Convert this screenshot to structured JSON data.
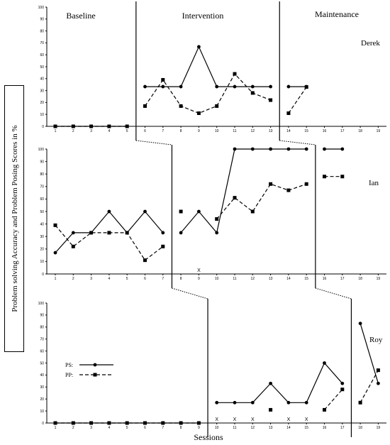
{
  "chart_data": {
    "type": "line",
    "ylabel": "Problem solving Accuracy and Problem Posing Scores in %",
    "xlabel": "Sessions",
    "phases": [
      "Baseline",
      "Intervention",
      "Maintenance"
    ],
    "x_ticks": [
      "1",
      "2",
      "3",
      "4",
      "5",
      "6",
      "7",
      "8",
      "9",
      "10",
      "11",
      "12",
      "13",
      "14",
      "15",
      "16",
      "17",
      "18",
      "19"
    ],
    "y_ticks": [
      "0",
      "10",
      "20",
      "30",
      "40",
      "50",
      "60",
      "70",
      "80",
      "90",
      "100"
    ],
    "ylim": [
      0,
      100
    ],
    "xlim": [
      1,
      19
    ],
    "legend": {
      "placement": "inside-bottom-left-panel",
      "entries": [
        {
          "series": "PS",
          "label": "PS:"
        },
        {
          "series": "PP",
          "label": "PP:"
        }
      ]
    },
    "panels": [
      {
        "student": "Derek",
        "baseline_end": 5,
        "maintenance_start": 14,
        "series": [
          {
            "name": "PS",
            "segments": [
              [
                [
                  1,
                  0
                ],
                [
                  2,
                  0
                ],
                [
                  3,
                  0
                ],
                [
                  4,
                  0
                ],
                [
                  5,
                  0
                ]
              ],
              [
                [
                  6,
                  33.3
                ],
                [
                  7,
                  33.3
                ],
                [
                  8,
                  33.3
                ],
                [
                  9,
                  66.7
                ],
                [
                  10,
                  33.3
                ],
                [
                  11,
                  33.3
                ],
                [
                  12,
                  33.3
                ],
                [
                  13,
                  33.3
                ]
              ],
              [
                [
                  14,
                  33.3
                ],
                [
                  15,
                  33.3
                ]
              ]
            ]
          },
          {
            "name": "PP",
            "segments": [
              [
                [
                  1,
                  0
                ],
                [
                  2,
                  0
                ],
                [
                  3,
                  0
                ],
                [
                  4,
                  0
                ],
                [
                  5,
                  0
                ]
              ],
              [
                [
                  6,
                  17
                ],
                [
                  7,
                  39
                ],
                [
                  8,
                  17
                ],
                [
                  9,
                  11
                ],
                [
                  10,
                  17
                ],
                [
                  11,
                  44
                ],
                [
                  12,
                  28
                ],
                [
                  13,
                  22
                ]
              ],
              [
                [
                  14,
                  11
                ],
                [
                  15,
                  33
                ]
              ]
            ]
          }
        ],
        "x_markers": []
      },
      {
        "student": "Ian",
        "baseline_end": 7,
        "maintenance_start": 16,
        "series": [
          {
            "name": "PS",
            "segments": [
              [
                [
                  1,
                  17
                ],
                [
                  2,
                  33
                ],
                [
                  3,
                  33
                ],
                [
                  4,
                  50
                ],
                [
                  5,
                  33
                ],
                [
                  6,
                  50
                ],
                [
                  7,
                  33
                ]
              ],
              [
                [
                  8,
                  33
                ],
                [
                  9,
                  50
                ],
                [
                  10,
                  33
                ],
                [
                  11,
                  100
                ],
                [
                  12,
                  100
                ],
                [
                  13,
                  100
                ],
                [
                  14,
                  100
                ],
                [
                  15,
                  100
                ]
              ],
              [
                [
                  16,
                  100
                ],
                [
                  17,
                  100
                ]
              ]
            ]
          },
          {
            "name": "PP",
            "segments": [
              [
                [
                  1,
                  39
                ],
                [
                  2,
                  22
                ],
                [
                  3,
                  33
                ],
                [
                  4,
                  33
                ],
                [
                  5,
                  33
                ],
                [
                  6,
                  11
                ],
                [
                  7,
                  22
                ]
              ],
              [
                [
                  8,
                  50
                ]
              ],
              [
                [
                  10,
                  44
                ],
                [
                  11,
                  61
                ],
                [
                  12,
                  50
                ],
                [
                  13,
                  72
                ],
                [
                  14,
                  67
                ],
                [
                  15,
                  72
                ]
              ],
              [
                [
                  16,
                  78
                ],
                [
                  17,
                  78
                ]
              ]
            ]
          }
        ],
        "x_markers": [
          9
        ]
      },
      {
        "student": "Roy",
        "baseline_end": 9,
        "maintenance_start": 18,
        "series": [
          {
            "name": "PS",
            "segments": [
              [
                [
                  1,
                  0
                ],
                [
                  2,
                  0
                ],
                [
                  3,
                  0
                ],
                [
                  4,
                  0
                ],
                [
                  5,
                  0
                ],
                [
                  6,
                  0
                ],
                [
                  7,
                  0
                ],
                [
                  8,
                  0
                ],
                [
                  9,
                  0
                ]
              ],
              [
                [
                  10,
                  17
                ],
                [
                  11,
                  17
                ],
                [
                  12,
                  17
                ],
                [
                  13,
                  33
                ],
                [
                  14,
                  17
                ],
                [
                  15,
                  17
                ],
                [
                  16,
                  50
                ],
                [
                  17,
                  33
                ]
              ],
              [
                [
                  18,
                  83
                ],
                [
                  19,
                  33
                ]
              ]
            ]
          },
          {
            "name": "PP",
            "segments": [
              [
                [
                  1,
                  0
                ],
                [
                  2,
                  0
                ],
                [
                  3,
                  0
                ],
                [
                  4,
                  0
                ],
                [
                  5,
                  0
                ],
                [
                  6,
                  0
                ],
                [
                  7,
                  0
                ],
                [
                  8,
                  0
                ],
                [
                  9,
                  0
                ]
              ],
              [
                [
                  13,
                  11
                ]
              ],
              [
                [
                  16,
                  11
                ],
                [
                  17,
                  28
                ]
              ],
              [
                [
                  18,
                  17
                ],
                [
                  19,
                  44
                ]
              ]
            ]
          }
        ],
        "x_markers": [
          10,
          11,
          12,
          14,
          15
        ]
      }
    ]
  }
}
